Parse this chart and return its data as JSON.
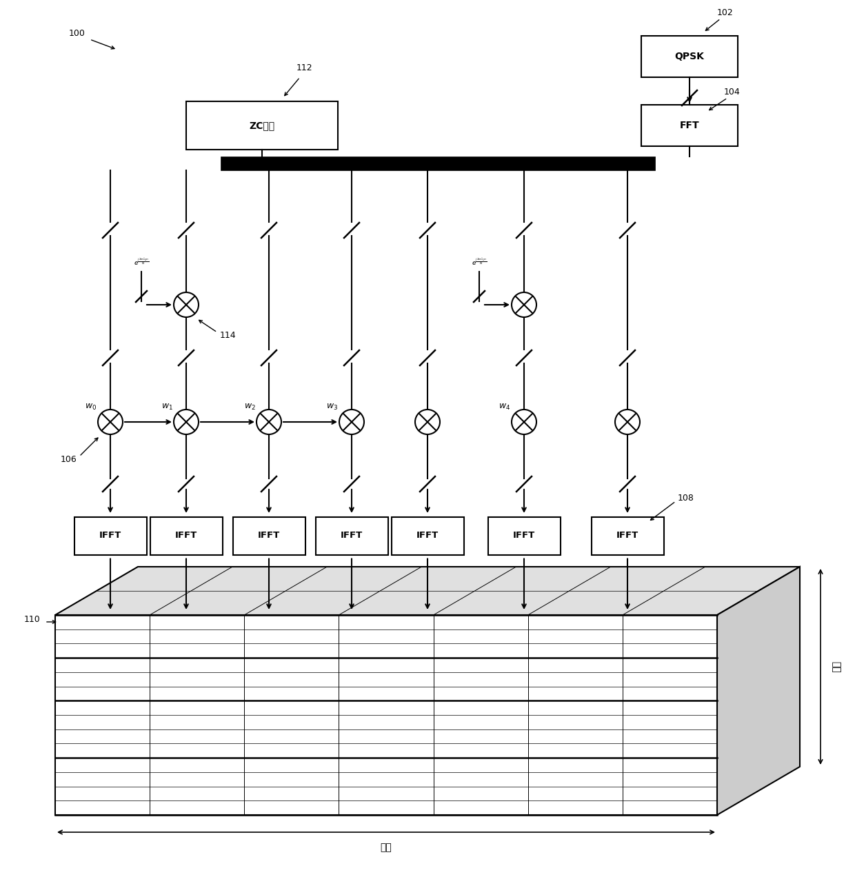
{
  "bg_color": "#ffffff",
  "fig_width": 12.4,
  "fig_height": 12.72,
  "labels": {
    "qpsk": "QPSK",
    "fft": "FFT",
    "zc": "ZC序列",
    "ifft": "IFFT",
    "bandwidth": "带宽",
    "timeslot": "时隙"
  },
  "refs": {
    "r100": "100",
    "r102": "102",
    "r104": "104",
    "r106": "106",
    "r108": "108",
    "r110": "110",
    "r112": "112",
    "r114": "114"
  }
}
